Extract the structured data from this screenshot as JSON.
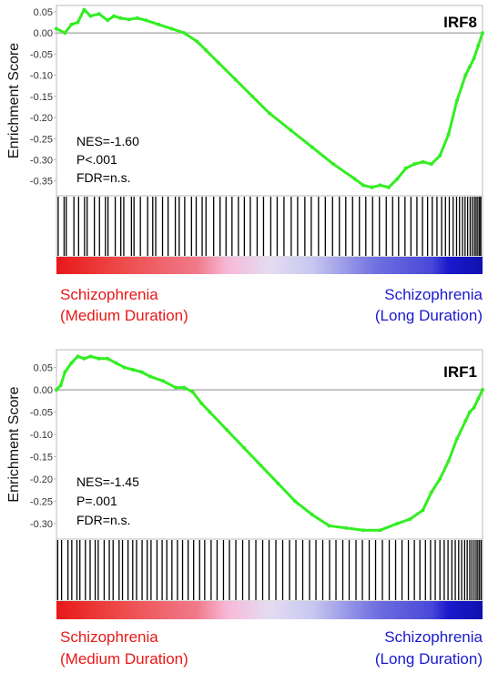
{
  "colors": {
    "curve": "#33ee22",
    "zero_line": "#999999",
    "frame": "#bbbbbb",
    "hit": "#000000",
    "red": "#e81818",
    "blue": "#1a1acc",
    "pink": "#f7b8d8",
    "pale": "#d9d9f2"
  },
  "chart_data": [
    {
      "type": "line",
      "title": "IRF8",
      "ylabel": "Enrichment Score",
      "ylim": [
        -0.385,
        0.065
      ],
      "yticks": [
        "0.05",
        "0.00",
        "-0.05",
        "-0.10",
        "-0.15",
        "-0.20",
        "-0.25",
        "-0.30",
        "-0.35"
      ],
      "stats": [
        "NES=-1.60",
        "P<.001",
        "FDR=n.s."
      ],
      "x_range": [
        0,
        1
      ],
      "x": [
        0,
        0.02,
        0.035,
        0.05,
        0.065,
        0.08,
        0.1,
        0.12,
        0.135,
        0.15,
        0.17,
        0.19,
        0.21,
        0.24,
        0.27,
        0.3,
        0.33,
        0.35,
        0.38,
        0.42,
        0.46,
        0.5,
        0.55,
        0.6,
        0.65,
        0.7,
        0.72,
        0.74,
        0.76,
        0.78,
        0.8,
        0.82,
        0.84,
        0.86,
        0.88,
        0.9,
        0.92,
        0.94,
        0.96,
        0.97,
        0.98,
        0.99,
        1.0
      ],
      "y": [
        0.01,
        0.0,
        0.02,
        0.025,
        0.055,
        0.04,
        0.045,
        0.03,
        0.04,
        0.035,
        0.032,
        0.035,
        0.03,
        0.02,
        0.01,
        0.0,
        -0.02,
        -0.04,
        -0.07,
        -0.11,
        -0.15,
        -0.19,
        -0.23,
        -0.27,
        -0.31,
        -0.345,
        -0.36,
        -0.365,
        -0.36,
        -0.365,
        -0.345,
        -0.32,
        -0.31,
        -0.305,
        -0.31,
        -0.29,
        -0.24,
        -0.16,
        -0.1,
        -0.08,
        -0.06,
        -0.03,
        0.0
      ],
      "hits": [
        0.004,
        0.018,
        0.023,
        0.041,
        0.052,
        0.066,
        0.072,
        0.089,
        0.101,
        0.115,
        0.121,
        0.138,
        0.151,
        0.158,
        0.176,
        0.182,
        0.197,
        0.214,
        0.226,
        0.233,
        0.249,
        0.262,
        0.279,
        0.288,
        0.301,
        0.317,
        0.328,
        0.342,
        0.351,
        0.369,
        0.384,
        0.398,
        0.412,
        0.427,
        0.441,
        0.455,
        0.471,
        0.486,
        0.503,
        0.518,
        0.534,
        0.551,
        0.566,
        0.583,
        0.598,
        0.615,
        0.631,
        0.648,
        0.664,
        0.679,
        0.695,
        0.711,
        0.726,
        0.742,
        0.758,
        0.774,
        0.789,
        0.803,
        0.818,
        0.832,
        0.846,
        0.859,
        0.871,
        0.882,
        0.893,
        0.904,
        0.913,
        0.922,
        0.931,
        0.939,
        0.946,
        0.953,
        0.959,
        0.965,
        0.971,
        0.976,
        0.981,
        0.985,
        0.989,
        0.993,
        0.996
      ]
    },
    {
      "type": "line",
      "title": "IRF1",
      "ylabel": "Enrichment Score",
      "ylim": [
        -0.335,
        0.09
      ],
      "yticks": [
        "0.05",
        "0.00",
        "-0.05",
        "-0.10",
        "-0.15",
        "-0.20",
        "-0.25",
        "-0.30"
      ],
      "stats": [
        "NES=-1.45",
        "P=.001",
        "FDR=n.s."
      ],
      "x_range": [
        0,
        1
      ],
      "x": [
        0,
        0.01,
        0.02,
        0.035,
        0.05,
        0.065,
        0.08,
        0.1,
        0.12,
        0.14,
        0.16,
        0.18,
        0.2,
        0.22,
        0.25,
        0.28,
        0.3,
        0.32,
        0.34,
        0.36,
        0.4,
        0.44,
        0.48,
        0.52,
        0.56,
        0.6,
        0.64,
        0.68,
        0.72,
        0.76,
        0.8,
        0.83,
        0.86,
        0.88,
        0.9,
        0.92,
        0.94,
        0.96,
        0.97,
        0.98,
        0.99,
        1.0
      ],
      "y": [
        0.0,
        0.01,
        0.04,
        0.06,
        0.075,
        0.07,
        0.075,
        0.07,
        0.07,
        0.06,
        0.05,
        0.045,
        0.04,
        0.03,
        0.02,
        0.005,
        0.005,
        -0.005,
        -0.03,
        -0.05,
        -0.09,
        -0.13,
        -0.17,
        -0.21,
        -0.25,
        -0.28,
        -0.305,
        -0.31,
        -0.315,
        -0.315,
        -0.3,
        -0.29,
        -0.27,
        -0.23,
        -0.2,
        -0.16,
        -0.11,
        -0.07,
        -0.05,
        -0.04,
        -0.02,
        0.0
      ],
      "hits": [
        0.003,
        0.012,
        0.027,
        0.036,
        0.048,
        0.055,
        0.068,
        0.079,
        0.091,
        0.098,
        0.112,
        0.124,
        0.133,
        0.147,
        0.155,
        0.168,
        0.179,
        0.188,
        0.201,
        0.213,
        0.222,
        0.236,
        0.248,
        0.259,
        0.271,
        0.284,
        0.296,
        0.309,
        0.322,
        0.336,
        0.348,
        0.363,
        0.377,
        0.392,
        0.406,
        0.421,
        0.437,
        0.452,
        0.468,
        0.484,
        0.499,
        0.515,
        0.531,
        0.547,
        0.562,
        0.578,
        0.594,
        0.609,
        0.625,
        0.641,
        0.656,
        0.672,
        0.687,
        0.703,
        0.718,
        0.734,
        0.749,
        0.765,
        0.781,
        0.796,
        0.811,
        0.826,
        0.84,
        0.853,
        0.866,
        0.878,
        0.889,
        0.9,
        0.91,
        0.919,
        0.928,
        0.936,
        0.944,
        0.951,
        0.958,
        0.964,
        0.97,
        0.975,
        0.98,
        0.985,
        0.989,
        0.993,
        0.997
      ]
    }
  ],
  "labels": {
    "left_group": [
      "Schizophrenia",
      "(Medium Duration)"
    ],
    "right_group": [
      "Schizophrenia",
      "(Long Duration)"
    ]
  }
}
